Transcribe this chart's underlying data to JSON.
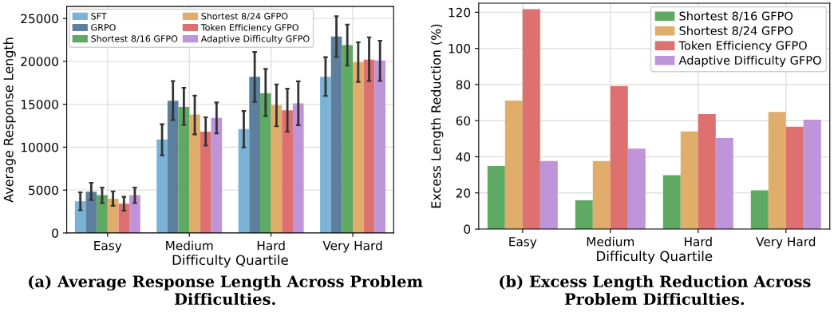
{
  "chart_data": [
    {
      "type": "bar",
      "xlabel": "Difficulty Quartile",
      "ylabel": "Average Response Length",
      "categories": [
        "Easy",
        "Medium",
        "Hard",
        "Very Hard"
      ],
      "ylim": [
        0,
        26400
      ],
      "yticks": [
        0,
        5000,
        10000,
        15000,
        20000,
        25000
      ],
      "grid": true,
      "legend": "top left",
      "annotations": [
        "(a) Average Response Length Across Problem Difficulties."
      ],
      "series": [
        {
          "name": "SFT",
          "color": "#7ab3d6",
          "values": [
            3700,
            10900,
            12100,
            18200
          ],
          "errors": [
            [
              2650,
              4730
            ],
            [
              9050,
              12680
            ],
            [
              9970,
              14210
            ],
            [
              15980,
              20490
            ]
          ]
        },
        {
          "name": "GRPO",
          "color": "#5b7f9c",
          "values": [
            4800,
            15400,
            18200,
            22900
          ],
          "errors": [
            [
              3840,
              5850
            ],
            [
              13170,
              17710
            ],
            [
              15270,
              21100
            ],
            [
              20520,
              25270
            ]
          ]
        },
        {
          "name": "Shortest 8/16 GFPO",
          "color": "#5faa62",
          "values": [
            4400,
            14700,
            16300,
            21900
          ],
          "errors": [
            [
              3480,
              5300
            ],
            [
              12590,
              16920
            ],
            [
              13630,
              19120
            ],
            [
              19510,
              24300
            ]
          ]
        },
        {
          "name": "Shortest 8/24 GFPO",
          "color": "#e0ad6b",
          "values": [
            4000,
            13800,
            14900,
            19900
          ],
          "errors": [
            [
              3170,
              4850
            ],
            [
              11490,
              16010
            ],
            [
              12440,
              17320
            ],
            [
              17590,
              22230
            ]
          ]
        },
        {
          "name": "Token Efficiency GFPO",
          "color": "#de7070",
          "values": [
            3400,
            11800,
            14300,
            20200
          ],
          "errors": [
            [
              2590,
              4210
            ],
            [
              10180,
              13480
            ],
            [
              11800,
              16830
            ],
            [
              17710,
              22800
            ]
          ]
        },
        {
          "name": "Adaptive Difficulty GFPO",
          "color": "#bf94d9",
          "values": [
            4400,
            13400,
            15100,
            20100
          ],
          "errors": [
            [
              3480,
              5300
            ],
            [
              11590,
              15210
            ],
            [
              12560,
              17680
            ],
            [
              17710,
              22410
            ]
          ]
        }
      ]
    },
    {
      "type": "bar",
      "xlabel": "Difficulty Quartile",
      "ylabel": "Excess Length Reduction (%)",
      "categories": [
        "Easy",
        "Medium",
        "Hard",
        "Very Hard"
      ],
      "ylim": [
        0,
        125
      ],
      "yticks": [
        0,
        20,
        40,
        60,
        80,
        100,
        120
      ],
      "grid": true,
      "legend": "top right",
      "annotations": [
        "(b) Excess Length Reduction Across Problem Difficulties."
      ],
      "series": [
        {
          "name": "Shortest 8/16 GFPO",
          "color": "#5faa62",
          "values": [
            34.9,
            15.9,
            29.8,
            21.4
          ]
        },
        {
          "name": "Shortest 8/24 GFPO",
          "color": "#e0ad6b",
          "values": [
            71.1,
            37.7,
            54.0,
            64.8
          ]
        },
        {
          "name": "Token Efficiency GFPO",
          "color": "#de7070",
          "values": [
            121.7,
            79.2,
            63.6,
            56.7
          ]
        },
        {
          "name": "Adaptive Difficulty GFPO",
          "color": "#bf94d9",
          "values": [
            37.7,
            44.5,
            50.4,
            60.5
          ]
        }
      ]
    }
  ]
}
